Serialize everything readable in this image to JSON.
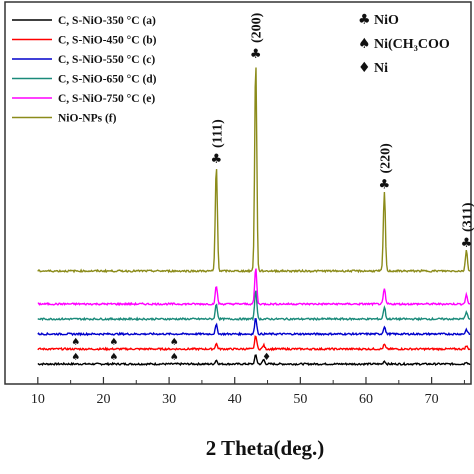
{
  "chart_data": {
    "type": "line",
    "title": "",
    "xlabel": "2 Theta(deg.)",
    "ylabel": "",
    "xlim": [
      5,
      76
    ],
    "xticks": [
      "10",
      "20",
      "30",
      "40",
      "50",
      "60",
      "70"
    ],
    "grid": false,
    "legend_position": "top-left",
    "series": [
      {
        "name": "C, S-NiO-350 °C (a)",
        "color": "#000000",
        "offset": 0,
        "peaks": [
          {
            "x": 37.2,
            "h": 0.25
          },
          {
            "x": 43.2,
            "h": 0.6
          },
          {
            "x": 44.4,
            "h": 0.3
          },
          {
            "x": 62.8,
            "h": 0.2
          },
          {
            "x": 75.3,
            "h": 0.15
          }
        ]
      },
      {
        "name": "C, S-NiO-450 °C (b)",
        "color": "#ff0000",
        "offset": 1,
        "peaks": [
          {
            "x": 37.2,
            "h": 0.35
          },
          {
            "x": 43.2,
            "h": 0.9
          },
          {
            "x": 44.4,
            "h": 0.25
          },
          {
            "x": 62.8,
            "h": 0.3
          },
          {
            "x": 75.3,
            "h": 0.2
          }
        ]
      },
      {
        "name": "C, S-NiO-550 °C (c)",
        "color": "#0000cc",
        "offset": 2,
        "peaks": [
          {
            "x": 37.2,
            "h": 0.6
          },
          {
            "x": 43.2,
            "h": 1.1
          },
          {
            "x": 62.8,
            "h": 0.5
          },
          {
            "x": 75.3,
            "h": 0.3
          }
        ]
      },
      {
        "name": "C, S-NiO-650 °C (d)",
        "color": "#1a8a7a",
        "offset": 3,
        "peaks": [
          {
            "x": 37.2,
            "h": 1.0
          },
          {
            "x": 43.2,
            "h": 2.0
          },
          {
            "x": 62.8,
            "h": 0.8
          },
          {
            "x": 75.3,
            "h": 0.5
          }
        ]
      },
      {
        "name": "C, S-NiO-750 °C (e)",
        "color": "#ff00ff",
        "offset": 4,
        "peaks": [
          {
            "x": 37.2,
            "h": 1.2
          },
          {
            "x": 43.2,
            "h": 2.4
          },
          {
            "x": 62.8,
            "h": 1.0
          },
          {
            "x": 75.3,
            "h": 0.6
          }
        ]
      },
      {
        "name": "NiO-NPs (f)",
        "color": "#8b8b1a",
        "offset": 6.2,
        "peaks": [
          {
            "x": 37.2,
            "h": 7.0
          },
          {
            "x": 43.2,
            "h": 14.0
          },
          {
            "x": 62.8,
            "h": 5.3
          },
          {
            "x": 75.3,
            "h": 1.4
          }
        ]
      }
    ],
    "phase_legend": [
      {
        "symbol": "♣",
        "label": "NiO"
      },
      {
        "symbol": "♠",
        "label": "Ni(CH₃COO"
      },
      {
        "symbol": "♦",
        "label": "Ni"
      }
    ],
    "annotations": [
      {
        "text": "(111)",
        "x": 37.2,
        "symbol": "♣"
      },
      {
        "text": "(200)",
        "x": 43.2,
        "symbol": "♣"
      },
      {
        "text": "(220)",
        "x": 62.8,
        "symbol": "♣"
      },
      {
        "text": "(311)",
        "x": 75.3,
        "symbol": "♣"
      }
    ],
    "acetate_markers": [
      {
        "x": 15.8,
        "series": 1
      },
      {
        "x": 21.6,
        "series": 1
      },
      {
        "x": 30.8,
        "series": 1
      },
      {
        "x": 15.8,
        "series": 0
      },
      {
        "x": 21.6,
        "series": 0
      },
      {
        "x": 30.8,
        "series": 0
      }
    ],
    "ni_marker": {
      "x": 44.4,
      "symbol": "♦",
      "series": 0
    }
  }
}
